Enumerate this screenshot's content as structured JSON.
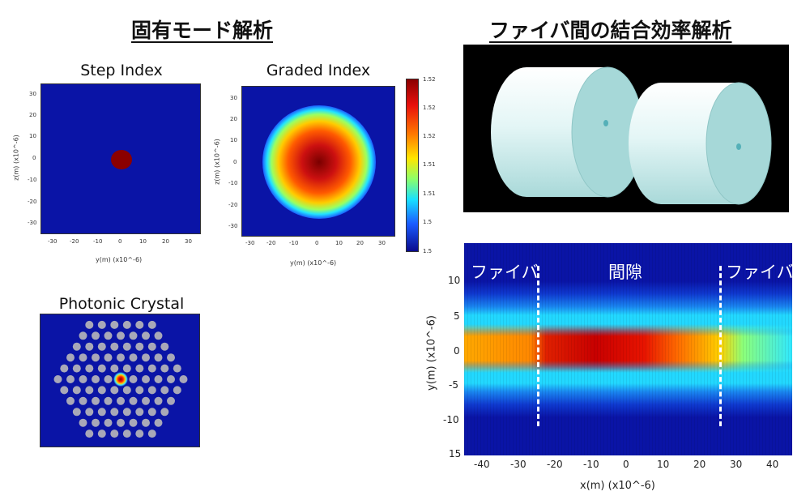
{
  "left_heading": "固有モード解析",
  "right_heading": "ファイバ間の結合効率解析",
  "step_index": {
    "title": "Step Index",
    "xlabel": "y(m) (x10^-6)",
    "ylabel": "z(m) (x10^-6)",
    "xticks": [
      "-30",
      "-20",
      "-10",
      "0",
      "10",
      "20",
      "30"
    ],
    "yticks": [
      "30",
      "20",
      "10",
      "0",
      "-10",
      "-20",
      "-30"
    ]
  },
  "graded_index": {
    "title": "Graded Index",
    "xlabel": "y(m) (x10^-6)",
    "ylabel": "z(m) (x10^-6)",
    "xticks": [
      "-30",
      "-20",
      "-10",
      "0",
      "10",
      "20",
      "30"
    ],
    "yticks": [
      "30",
      "20",
      "10",
      "0",
      "-10",
      "-20",
      "-30"
    ],
    "colorbar_ticks": [
      "1.52",
      "1.52",
      "1.52",
      "1.51",
      "1.51",
      "1.5",
      "1.5"
    ]
  },
  "photonic_crystal": {
    "title": "Photonic Crystal"
  },
  "coupling": {
    "xlabel": "x(m) (x10^-6)",
    "ylabel": "y(m) (x10^-6)",
    "xticks": [
      "-40",
      "-30",
      "-20",
      "-10",
      "0",
      "10",
      "20",
      "30",
      "40"
    ],
    "yticks": [
      "10",
      "5",
      "0",
      "-5",
      "-10",
      "15"
    ],
    "region_left": "ファイバ",
    "region_gap": "間隙",
    "region_right": "ファイバ"
  },
  "colors": {
    "background_blue": "#0a14a6",
    "core_red": "#8b0000",
    "cylinder": "#b8e6e6"
  }
}
